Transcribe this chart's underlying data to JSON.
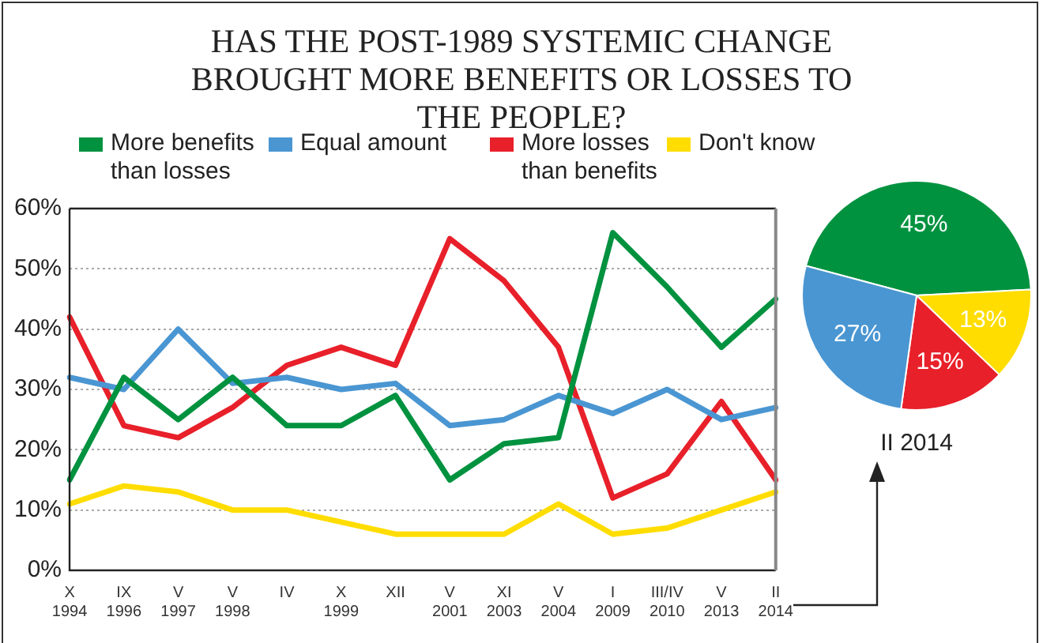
{
  "chart_data": [
    {
      "type": "line",
      "title": "HAS THE POST-1989 SYSTEMIC CHANGE BROUGHT MORE BENEFITS OR LOSSES TO THE PEOPLE?",
      "categories": [
        "X 1994",
        "IX 1996",
        "V 1997",
        "V 1998",
        "IV",
        "X 1999",
        "XII",
        "V 2001",
        "XI 2003",
        "V 2004",
        "I 2009",
        "III/IV 2010",
        "V 2013",
        "II 2014"
      ],
      "series": [
        {
          "name": "More benefits than losses",
          "color": "#00923f",
          "values": [
            15,
            32,
            25,
            32,
            24,
            24,
            29,
            15,
            21,
            22,
            56,
            47,
            37,
            45
          ]
        },
        {
          "name": "Equal amount",
          "color": "#4a96d2",
          "values": [
            32,
            30,
            40,
            31,
            32,
            30,
            31,
            24,
            25,
            29,
            26,
            30,
            25,
            27
          ]
        },
        {
          "name": "More losses than benefits",
          "color": "#e8202a",
          "values": [
            42,
            24,
            22,
            27,
            34,
            37,
            34,
            55,
            48,
            37,
            12,
            16,
            28,
            15
          ]
        },
        {
          "name": "Don't know",
          "color": "#ffdd00",
          "values": [
            11,
            14,
            13,
            10,
            10,
            8,
            6,
            6,
            6,
            11,
            6,
            7,
            10,
            13
          ]
        }
      ],
      "ylim": [
        0,
        60
      ],
      "yticks": [
        {
          "value": 0,
          "label": "0%"
        },
        {
          "value": 10,
          "label": "10%"
        },
        {
          "value": 20,
          "label": "20%"
        },
        {
          "value": 30,
          "label": "30%"
        },
        {
          "value": 40,
          "label": "40%"
        },
        {
          "value": 50,
          "label": "50%"
        },
        {
          "value": 60,
          "label": "60%"
        }
      ],
      "grid": "y",
      "legend": "top",
      "marker": "none",
      "line_style": "solid"
    },
    {
      "type": "pie",
      "title": "II 2014",
      "categories": [
        null,
        null,
        null,
        null
      ],
      "values": [
        45,
        13,
        15,
        27
      ],
      "colors": [
        "#00923f",
        "#ffdd00",
        "#e8202a",
        "#4a96d2"
      ],
      "value_labels": [
        "45%",
        "13%",
        "15%",
        "27%"
      ]
    }
  ]
}
